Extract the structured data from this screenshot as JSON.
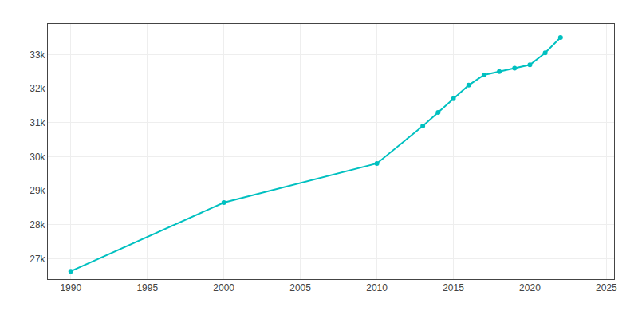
{
  "chart_data": {
    "type": "line",
    "x": [
      1990,
      2000,
      2010,
      2013,
      2014,
      2015,
      2016,
      2017,
      2018,
      2019,
      2020,
      2021,
      2022
    ],
    "values": [
      26630,
      28650,
      29800,
      30900,
      31300,
      31700,
      32100,
      32400,
      32500,
      32600,
      32700,
      33050,
      33500
    ],
    "color": "#00C0C0",
    "marker": "circle",
    "xlim": [
      1988.5,
      2025.5
    ],
    "ylim": [
      26400,
      33900
    ],
    "xticks": [
      1990,
      1995,
      2000,
      2005,
      2010,
      2015,
      2020,
      2025
    ],
    "yticks": [
      {
        "value": 27000,
        "label": "27k"
      },
      {
        "value": 28000,
        "label": "28k"
      },
      {
        "value": 29000,
        "label": "29k"
      },
      {
        "value": 30000,
        "label": "30k"
      },
      {
        "value": 31000,
        "label": "31k"
      },
      {
        "value": 32000,
        "label": "32k"
      },
      {
        "value": 33000,
        "label": "33k"
      }
    ],
    "grid": true
  }
}
